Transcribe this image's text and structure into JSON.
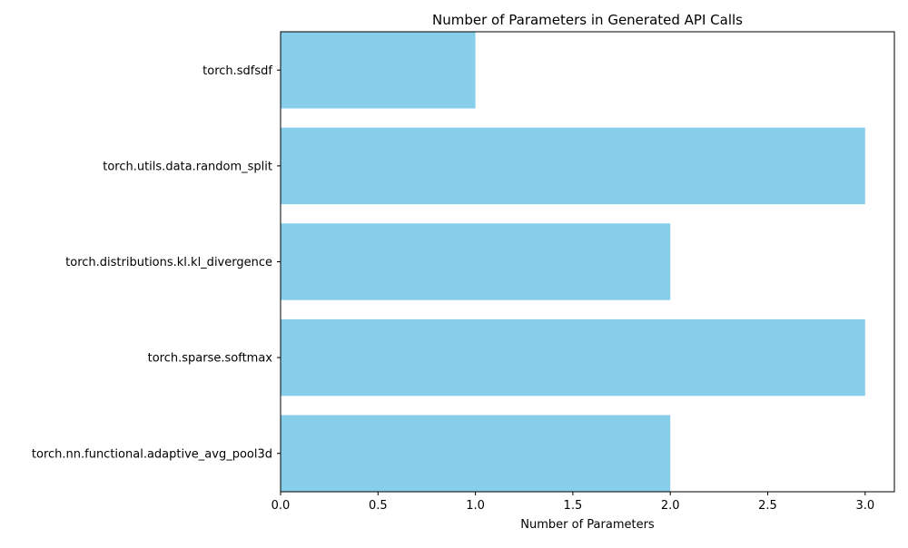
{
  "chart_data": {
    "type": "bar",
    "orientation": "horizontal",
    "title": "Number of Parameters in Generated API Calls",
    "xlabel": "Number of Parameters",
    "ylabel": "",
    "categories": [
      "torch.sdfsdf",
      "torch.utils.data.random_split",
      "torch.distributions.kl.kl_divergence",
      "torch.sparse.softmax",
      "torch.nn.functional.adaptive_avg_pool3d"
    ],
    "values": [
      1,
      3,
      2,
      3,
      2
    ],
    "xlim": [
      0,
      3.15
    ],
    "xticks": [
      0,
      0.5,
      1,
      1.5,
      2,
      2.5,
      3
    ],
    "xtick_labels": [
      "0.0",
      "0.5",
      "1.0",
      "1.5",
      "2.0",
      "2.5",
      "3.0"
    ],
    "grid": false,
    "legend": "none",
    "colors": {
      "bar": "#87ceeb",
      "axis": "#000000",
      "background": "#ffffff"
    }
  }
}
